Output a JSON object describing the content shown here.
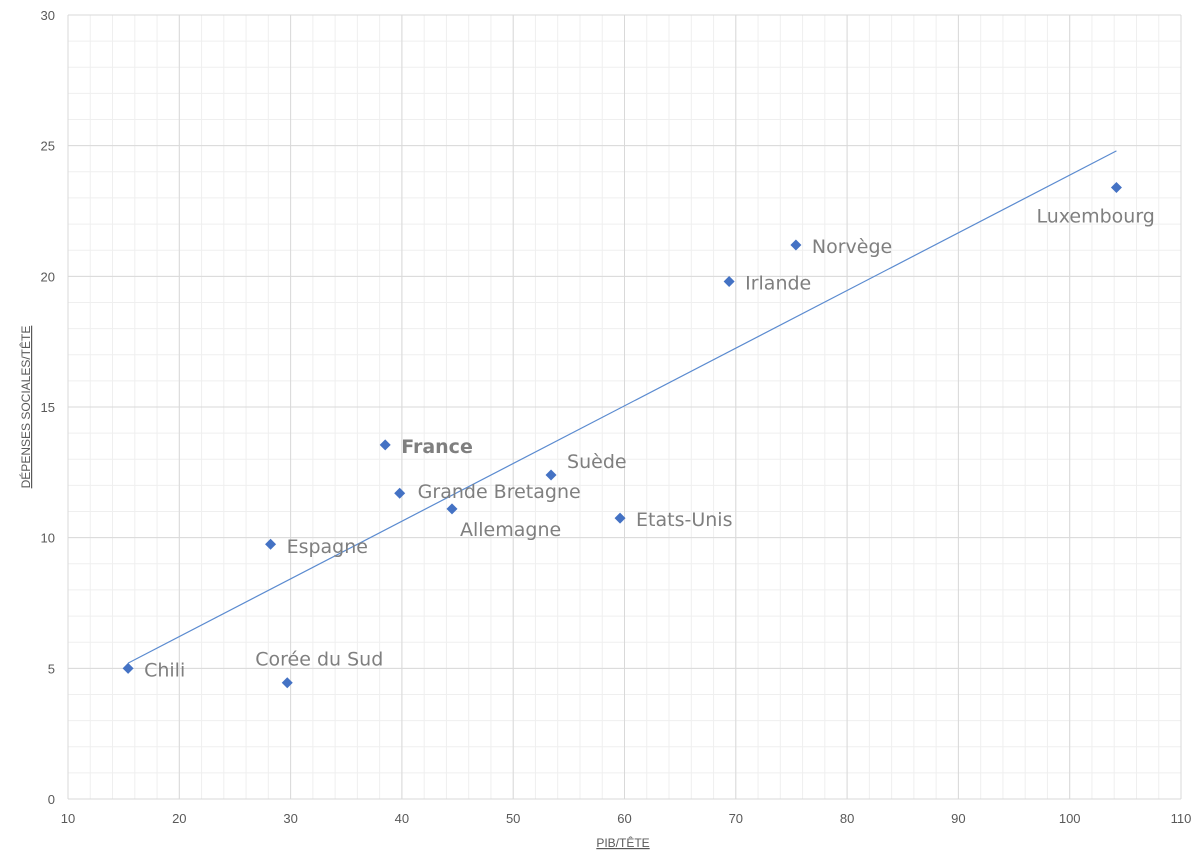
{
  "chart_data": {
    "type": "scatter",
    "title": "",
    "xlabel": "PIB/TÊTE",
    "ylabel": "DÉPENSES SOCIALES/TÊTE",
    "xlim": [
      10,
      110
    ],
    "ylim": [
      0,
      30
    ],
    "xticks": [
      "10",
      "20",
      "30",
      "40",
      "50",
      "60",
      "70",
      "80",
      "90",
      "100",
      "110"
    ],
    "yticks": [
      "0",
      "5",
      "10",
      "15",
      "20",
      "25",
      "30"
    ],
    "grid": true,
    "marker_color": "#4472c4",
    "trendline_color": "#5b8bd0",
    "trendline": {
      "x": [
        15.4,
        104.2
      ],
      "y": [
        5.2,
        24.8
      ]
    },
    "points": [
      {
        "label": "Chili",
        "x": 15.4,
        "y": 5.0,
        "bold": false
      },
      {
        "label": "Corée du Sud",
        "x": 29.7,
        "y": 4.45,
        "bold": false
      },
      {
        "label": "Espagne",
        "x": 28.2,
        "y": 9.75,
        "bold": false
      },
      {
        "label": "France",
        "x": 38.5,
        "y": 13.55,
        "bold": true
      },
      {
        "label": "Grande Bretagne",
        "x": 39.8,
        "y": 11.7,
        "bold": false
      },
      {
        "label": "Allemagne",
        "x": 44.5,
        "y": 11.1,
        "bold": false
      },
      {
        "label": "Suède",
        "x": 53.4,
        "y": 12.4,
        "bold": false
      },
      {
        "label": "Etats-Unis",
        "x": 59.6,
        "y": 10.75,
        "bold": false
      },
      {
        "label": "Irlande",
        "x": 69.4,
        "y": 19.8,
        "bold": false
      },
      {
        "label": "Norvège",
        "x": 75.4,
        "y": 21.2,
        "bold": false
      },
      {
        "label": "Luxembourg",
        "x": 104.2,
        "y": 23.4,
        "bold": false
      }
    ]
  }
}
